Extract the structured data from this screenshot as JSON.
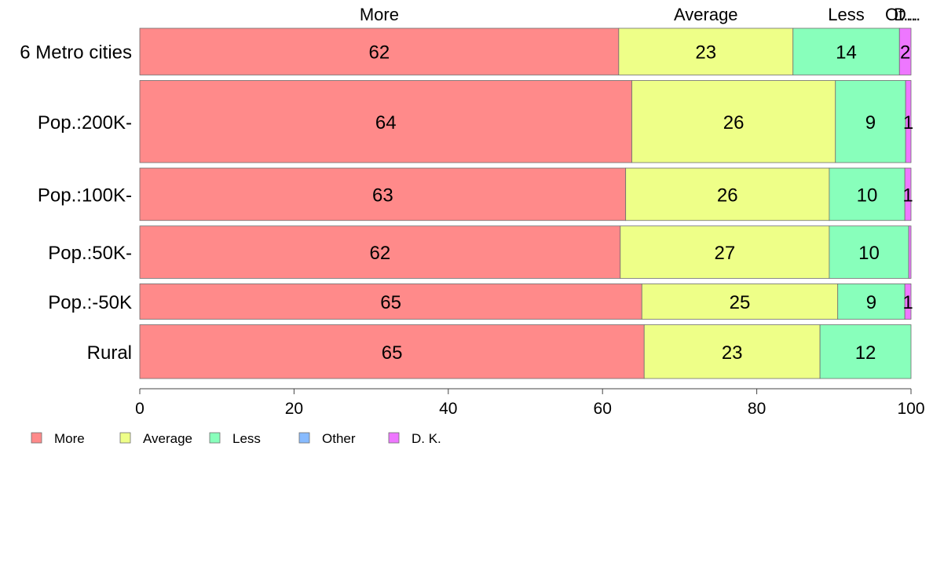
{
  "chart_data": {
    "type": "bar",
    "orientation": "horizontal",
    "stacked": true,
    "categories": [
      "6 Metro cities",
      "Pop.:200K-",
      "Pop.:100K-",
      "Pop.:50K-",
      "Pop.:-50K",
      "Rural"
    ],
    "series": [
      {
        "name": "More",
        "color": "#ff8a8a",
        "values": [
          62.1,
          63.8,
          63.0,
          62.3,
          65.1,
          65.4
        ]
      },
      {
        "name": "Average",
        "color": "#eeff88",
        "values": [
          22.6,
          26.4,
          26.4,
          27.1,
          25.4,
          22.8
        ]
      },
      {
        "name": "Less",
        "color": "#88ffbb",
        "values": [
          13.8,
          9.1,
          9.8,
          10.3,
          8.7,
          11.8
        ]
      },
      {
        "name": "Other",
        "color": "#88bbff",
        "values": [
          0,
          0,
          0,
          0,
          0,
          0
        ]
      },
      {
        "name": "D. K.",
        "color": "#ee77ff",
        "values": [
          1.5,
          0.7,
          0.8,
          0.3,
          0.8,
          0
        ]
      }
    ],
    "data_labels": [
      [
        "62",
        "23",
        "14",
        "",
        "2"
      ],
      [
        "64",
        "26",
        "9",
        "",
        "1"
      ],
      [
        "63",
        "26",
        "10",
        "",
        "1"
      ],
      [
        "62",
        "27",
        "10",
        "",
        ""
      ],
      [
        "65",
        "25",
        "9",
        "",
        "1"
      ],
      [
        "65",
        "23",
        "12",
        "",
        ""
      ]
    ],
    "top_labels": [
      "More",
      "Average",
      "Less",
      "Ot...",
      "D..."
    ],
    "bar_widths": [
      33,
      58,
      37,
      37,
      25,
      38
    ],
    "xlim": [
      0,
      100
    ],
    "xticks": [
      0,
      20,
      40,
      60,
      80,
      100
    ],
    "legend_position": "bottom-left",
    "grid": false,
    "title": "",
    "xlabel": "",
    "ylabel": ""
  }
}
